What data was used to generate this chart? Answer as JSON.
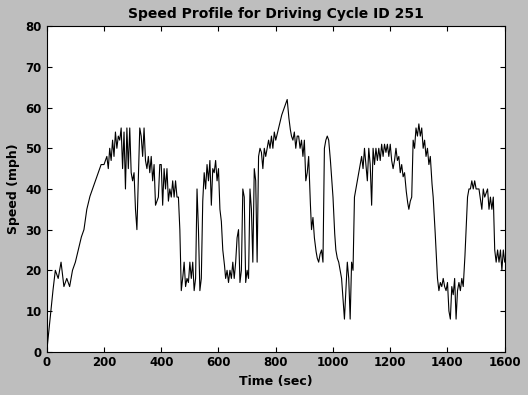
{
  "title": "Speed Profile for Driving Cycle ID 251",
  "xlabel": "Time (sec)",
  "ylabel": "Speed (mph)",
  "xlim": [
    0,
    1600
  ],
  "ylim": [
    0,
    80
  ],
  "xticks": [
    0,
    200,
    400,
    600,
    800,
    1000,
    1200,
    1400,
    1600
  ],
  "yticks": [
    0,
    10,
    20,
    30,
    40,
    50,
    60,
    70,
    80
  ],
  "line_color": "black",
  "line_width": 0.8,
  "bg_color": "#bebebe",
  "axes_bg_color": "white",
  "title_fontsize": 10,
  "label_fontsize": 9,
  "tick_fontsize": 8.5
}
